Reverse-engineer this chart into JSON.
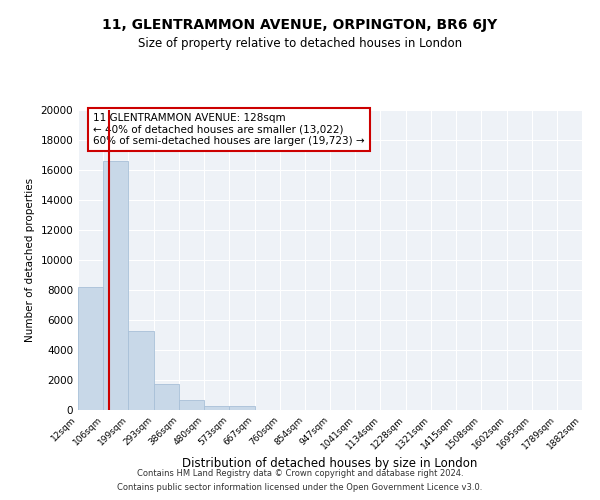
{
  "title": "11, GLENTRAMMON AVENUE, ORPINGTON, BR6 6JY",
  "subtitle": "Size of property relative to detached houses in London",
  "xlabel": "Distribution of detached houses by size in London",
  "ylabel": "Number of detached properties",
  "bar_color": "#c8d8e8",
  "bar_edgecolor": "#a8c0d8",
  "redline_color": "#cc0000",
  "annotation_title": "11 GLENTRAMMON AVENUE: 128sqm",
  "annotation_line1": "← 40% of detached houses are smaller (13,022)",
  "annotation_line2": "60% of semi-detached houses are larger (19,723) →",
  "footer1": "Contains HM Land Registry data © Crown copyright and database right 2024.",
  "footer2": "Contains public sector information licensed under the Open Government Licence v3.0.",
  "bin_edges": [
    12,
    106,
    199,
    293,
    386,
    480,
    573,
    667,
    760,
    854,
    947,
    1041,
    1134,
    1228,
    1321,
    1415,
    1508,
    1602,
    1695,
    1789,
    1882
  ],
  "bin_labels": [
    "12sqm",
    "106sqm",
    "199sqm",
    "293sqm",
    "386sqm",
    "480sqm",
    "573sqm",
    "667sqm",
    "760sqm",
    "854sqm",
    "947sqm",
    "1041sqm",
    "1134sqm",
    "1228sqm",
    "1321sqm",
    "1415sqm",
    "1508sqm",
    "1602sqm",
    "1695sqm",
    "1789sqm",
    "1882sqm"
  ],
  "counts": [
    8200,
    16600,
    5300,
    1750,
    650,
    300,
    250,
    0,
    0,
    0,
    0,
    0,
    0,
    0,
    0,
    0,
    0,
    0,
    0,
    0
  ],
  "ylim": [
    0,
    20000
  ],
  "yticks": [
    0,
    2000,
    4000,
    6000,
    8000,
    10000,
    12000,
    14000,
    16000,
    18000,
    20000
  ],
  "background_color": "#eef2f7",
  "redline_x": 128
}
